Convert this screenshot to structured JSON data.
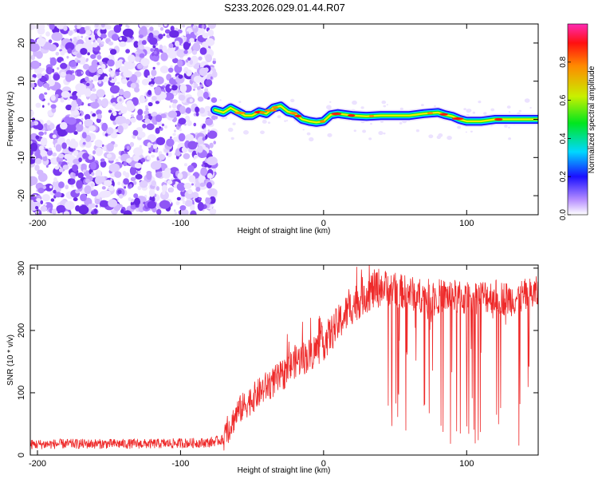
{
  "title": "S233.2026.029.01.44.R07",
  "chart_data": [
    {
      "type": "heatmap",
      "xlabel": "Height of straight line (km)",
      "ylabel": "Frequency (Hz)",
      "xlim": [
        -205,
        150
      ],
      "ylim": [
        -25,
        25
      ],
      "xticks": [
        -200,
        -100,
        0,
        100
      ],
      "yticks": [
        -20,
        -10,
        0,
        10,
        20
      ],
      "colorbar": {
        "label": "Normalized spectral amplitude",
        "range": [
          0,
          1
        ],
        "ticks": [
          "0.0",
          "0.2",
          "0.4",
          "0.6",
          "0.8"
        ]
      },
      "noise_region_x": [
        -205,
        -76
      ],
      "ridge": {
        "x": [
          -76,
          -70,
          -65,
          -60,
          -55,
          -50,
          -45,
          -40,
          -35,
          -30,
          -25,
          -20,
          -15,
          -10,
          -5,
          0,
          5,
          10,
          20,
          30,
          40,
          50,
          60,
          70,
          80,
          85,
          90,
          95,
          100,
          110,
          120,
          130,
          140,
          150
        ],
        "freq_hz": [
          2.5,
          1.8,
          3.0,
          2.0,
          1.0,
          1.0,
          2.0,
          1.5,
          3.0,
          3.5,
          2.0,
          1.5,
          0.0,
          -0.5,
          -0.8,
          -0.5,
          1.2,
          1.5,
          1.0,
          0.8,
          1.0,
          1.0,
          1.0,
          1.5,
          1.8,
          1.2,
          0.8,
          0.0,
          -0.5,
          -0.5,
          0.0,
          0.0,
          0.0,
          0.0
        ]
      }
    },
    {
      "type": "line",
      "xlabel": "Height of straight line (km)",
      "ylabel": "SNR (10 * v/v)",
      "xlim": [
        -205,
        150
      ],
      "ylim": [
        0,
        305
      ],
      "xticks": [
        -200,
        -100,
        0,
        100
      ],
      "yticks": [
        0,
        100,
        200,
        300
      ],
      "series": [
        {
          "name": "SNR",
          "color": "#ee2a2a",
          "x": [
            -205,
            -180,
            -150,
            -120,
            -100,
            -80,
            -70,
            -60,
            -50,
            -40,
            -30,
            -20,
            -10,
            0,
            10,
            20,
            30,
            40,
            50,
            60,
            70,
            80,
            90,
            100,
            110,
            120,
            130,
            140,
            150
          ],
          "y": [
            17,
            18,
            18,
            18,
            19,
            20,
            25,
            70,
            90,
            110,
            125,
            150,
            160,
            180,
            210,
            240,
            260,
            270,
            265,
            260,
            255,
            255,
            255,
            250,
            255,
            255,
            250,
            255,
            260
          ]
        }
      ]
    }
  ]
}
